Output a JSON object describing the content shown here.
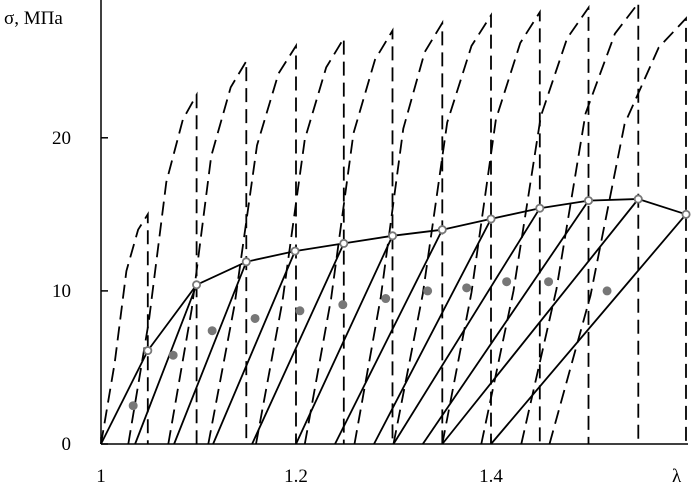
{
  "chart_data": {
    "type": "line",
    "xlabel": "λ",
    "ylabel": "σ, МПа",
    "xlim": [
      1,
      1.602
    ],
    "ylim": [
      0,
      29
    ],
    "xticks": [
      1,
      1.2,
      1.4
    ],
    "yticks": [
      0,
      10,
      20
    ],
    "series": [
      {
        "style": "dashed",
        "marker": "none",
        "color": "#000000",
        "x": [
          1.0,
          1.014,
          1.026,
          1.038,
          1.048,
          1.048
        ],
        "values": [
          0,
          5.3,
          11.3,
          14,
          15,
          0
        ]
      },
      {
        "style": "dashed",
        "marker": "none",
        "color": "#000000",
        "x": [
          1.028,
          1.049,
          1.067,
          1.084,
          1.098,
          1.098
        ],
        "values": [
          0,
          8,
          17.1,
          21.2,
          22.8,
          0
        ]
      },
      {
        "style": "dashed",
        "marker": "none",
        "color": "#000000",
        "x": [
          1.069,
          1.093,
          1.113,
          1.133,
          1.149,
          1.149
        ],
        "values": [
          0,
          8.8,
          18.8,
          23.3,
          25,
          0
        ]
      },
      {
        "style": "dashed",
        "marker": "none",
        "color": "#000000",
        "x": [
          1.11,
          1.137,
          1.16,
          1.182,
          1.2,
          1.2
        ],
        "values": [
          0,
          9.1,
          19.5,
          24.2,
          26,
          0
        ]
      },
      {
        "style": "dashed",
        "marker": "none",
        "color": "#000000",
        "x": [
          1.159,
          1.186,
          1.209,
          1.231,
          1.249,
          1.249
        ],
        "values": [
          0,
          9.3,
          19.9,
          24.6,
          26.5,
          0
        ]
      },
      {
        "style": "dashed",
        "marker": "none",
        "color": "#000000",
        "x": [
          1.209,
          1.236,
          1.259,
          1.281,
          1.299,
          1.299
        ],
        "values": [
          0,
          9.5,
          20.3,
          25.1,
          27,
          0
        ]
      },
      {
        "style": "dashed",
        "marker": "none",
        "color": "#000000",
        "x": [
          1.26,
          1.287,
          1.31,
          1.332,
          1.35,
          1.35
        ],
        "values": [
          0,
          9.6,
          20.6,
          25.6,
          27.5,
          0
        ]
      },
      {
        "style": "dashed",
        "marker": "none",
        "color": "#000000",
        "x": [
          1.3,
          1.33,
          1.355,
          1.38,
          1.4,
          1.4
        ],
        "values": [
          0,
          9.8,
          21,
          26,
          28,
          0
        ]
      },
      {
        "style": "dashed",
        "marker": "none",
        "color": "#000000",
        "x": [
          1.35,
          1.38,
          1.405,
          1.43,
          1.45,
          1.45
        ],
        "values": [
          0,
          9.9,
          21.2,
          26.2,
          28.2,
          0
        ]
      },
      {
        "style": "dashed",
        "marker": "none",
        "color": "#000000",
        "x": [
          1.39,
          1.423,
          1.451,
          1.478,
          1.5,
          1.5
        ],
        "values": [
          0,
          10,
          21.4,
          26.5,
          28.5,
          0
        ]
      },
      {
        "style": "dashed",
        "marker": "none",
        "color": "#000000",
        "x": [
          1.431,
          1.467,
          1.497,
          1.527,
          1.551,
          1.551
        ],
        "values": [
          0,
          10.1,
          21.6,
          26.8,
          28.8,
          0
        ]
      },
      {
        "style": "dashed",
        "marker": "none",
        "color": "#000000",
        "x": [
          1.46,
          1.502,
          1.537,
          1.572,
          1.6,
          1.6
        ],
        "values": [
          0,
          9.7,
          20.9,
          25.9,
          27.8,
          0
        ]
      },
      {
        "style": "solid",
        "marker": "none",
        "color": "#000000",
        "x": [
          1.0,
          1.048
        ],
        "values": [
          0,
          6.1
        ]
      },
      {
        "style": "solid",
        "marker": "none",
        "color": "#000000",
        "x": [
          1.035,
          1.098
        ],
        "values": [
          0,
          10.4
        ]
      },
      {
        "style": "solid",
        "marker": "none",
        "color": "#000000",
        "x": [
          1.075,
          1.149
        ],
        "values": [
          0,
          11.9
        ]
      },
      {
        "style": "solid",
        "marker": "none",
        "color": "#000000",
        "x": [
          1.115,
          1.199
        ],
        "values": [
          0,
          12.6
        ]
      },
      {
        "style": "solid",
        "marker": "none",
        "color": "#000000",
        "x": [
          1.155,
          1.249
        ],
        "values": [
          0,
          13.1
        ]
      },
      {
        "style": "solid",
        "marker": "none",
        "color": "#000000",
        "x": [
          1.2,
          1.299
        ],
        "values": [
          0,
          13.6
        ]
      },
      {
        "style": "solid",
        "marker": "none",
        "color": "#000000",
        "x": [
          1.24,
          1.35
        ],
        "values": [
          0,
          14.0
        ]
      },
      {
        "style": "solid",
        "marker": "none",
        "color": "#000000",
        "x": [
          1.28,
          1.4
        ],
        "values": [
          0,
          14.7
        ]
      },
      {
        "style": "solid",
        "marker": "none",
        "color": "#000000",
        "x": [
          1.3,
          1.45
        ],
        "values": [
          0,
          15.4
        ]
      },
      {
        "style": "solid",
        "marker": "none",
        "color": "#000000",
        "x": [
          1.33,
          1.5
        ],
        "values": [
          0,
          15.9
        ]
      },
      {
        "style": "solid",
        "marker": "none",
        "color": "#000000",
        "x": [
          1.35,
          1.551
        ],
        "values": [
          0,
          16.0
        ]
      },
      {
        "style": "solid",
        "marker": "none",
        "color": "#000000",
        "x": [
          1.4,
          1.6
        ],
        "values": [
          0,
          15.0
        ]
      },
      {
        "style": "solid",
        "marker": "open",
        "color": "#000000",
        "x": [
          1.048,
          1.098,
          1.149,
          1.199,
          1.249,
          1.299,
          1.35,
          1.4,
          1.45,
          1.5,
          1.551,
          1.6
        ],
        "values": [
          6.1,
          10.4,
          11.9,
          12.6,
          13.1,
          13.6,
          14.0,
          14.7,
          15.4,
          15.9,
          16.0,
          15.0
        ]
      },
      {
        "style": "none",
        "marker": "filled",
        "color": "#777777",
        "x": [
          1.033,
          1.074,
          1.114,
          1.158,
          1.204,
          1.248,
          1.292,
          1.335,
          1.375,
          1.416,
          1.459,
          1.519
        ],
        "values": [
          2.5,
          5.8,
          7.4,
          8.2,
          8.7,
          9.1,
          9.5,
          10.0,
          10.2,
          10.6,
          10.6,
          10.0
        ]
      }
    ]
  }
}
